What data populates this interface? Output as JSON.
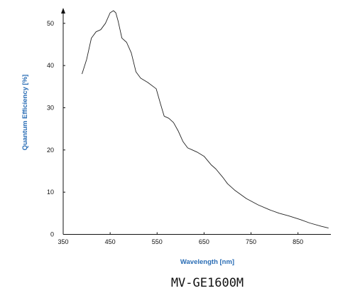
{
  "colors": {
    "axis_title": "#2a6db5",
    "line": "#222222",
    "axis": "#111111"
  },
  "chart_data": {
    "type": "line",
    "title": "",
    "xlabel": "Wavelength [nm]",
    "ylabel": "Quantum Efficiency [%]",
    "xlim": [
      350,
      920
    ],
    "ylim": [
      0,
      53
    ],
    "xticks": [
      350,
      450,
      550,
      650,
      750,
      850
    ],
    "yticks": [
      0,
      10,
      20,
      30,
      40,
      50
    ],
    "grid": false,
    "annotation": "MV-GE1600M",
    "series": [
      {
        "x": [
          390,
          400,
          410,
          420,
          430,
          440,
          450,
          457,
          462,
          467,
          475,
          485,
          495,
          505,
          515,
          530,
          548,
          557,
          565,
          575,
          585,
          595,
          605,
          615,
          625,
          635,
          650,
          665,
          675,
          690,
          700,
          715,
          740,
          765,
          790,
          810,
          830,
          855,
          875,
          900,
          915
        ],
        "y": [
          38,
          41.5,
          46.5,
          48,
          48.5,
          50,
          52.5,
          53,
          52.5,
          50.5,
          46.5,
          45.5,
          43,
          38.5,
          37,
          36,
          34.5,
          31,
          28,
          27.5,
          26.5,
          24.5,
          22,
          20.5,
          20,
          19.5,
          18.5,
          16.5,
          15.5,
          13.5,
          12,
          10.5,
          8.5,
          7,
          5.8,
          5,
          4.4,
          3.5,
          2.7,
          1.9,
          1.5
        ]
      }
    ]
  }
}
